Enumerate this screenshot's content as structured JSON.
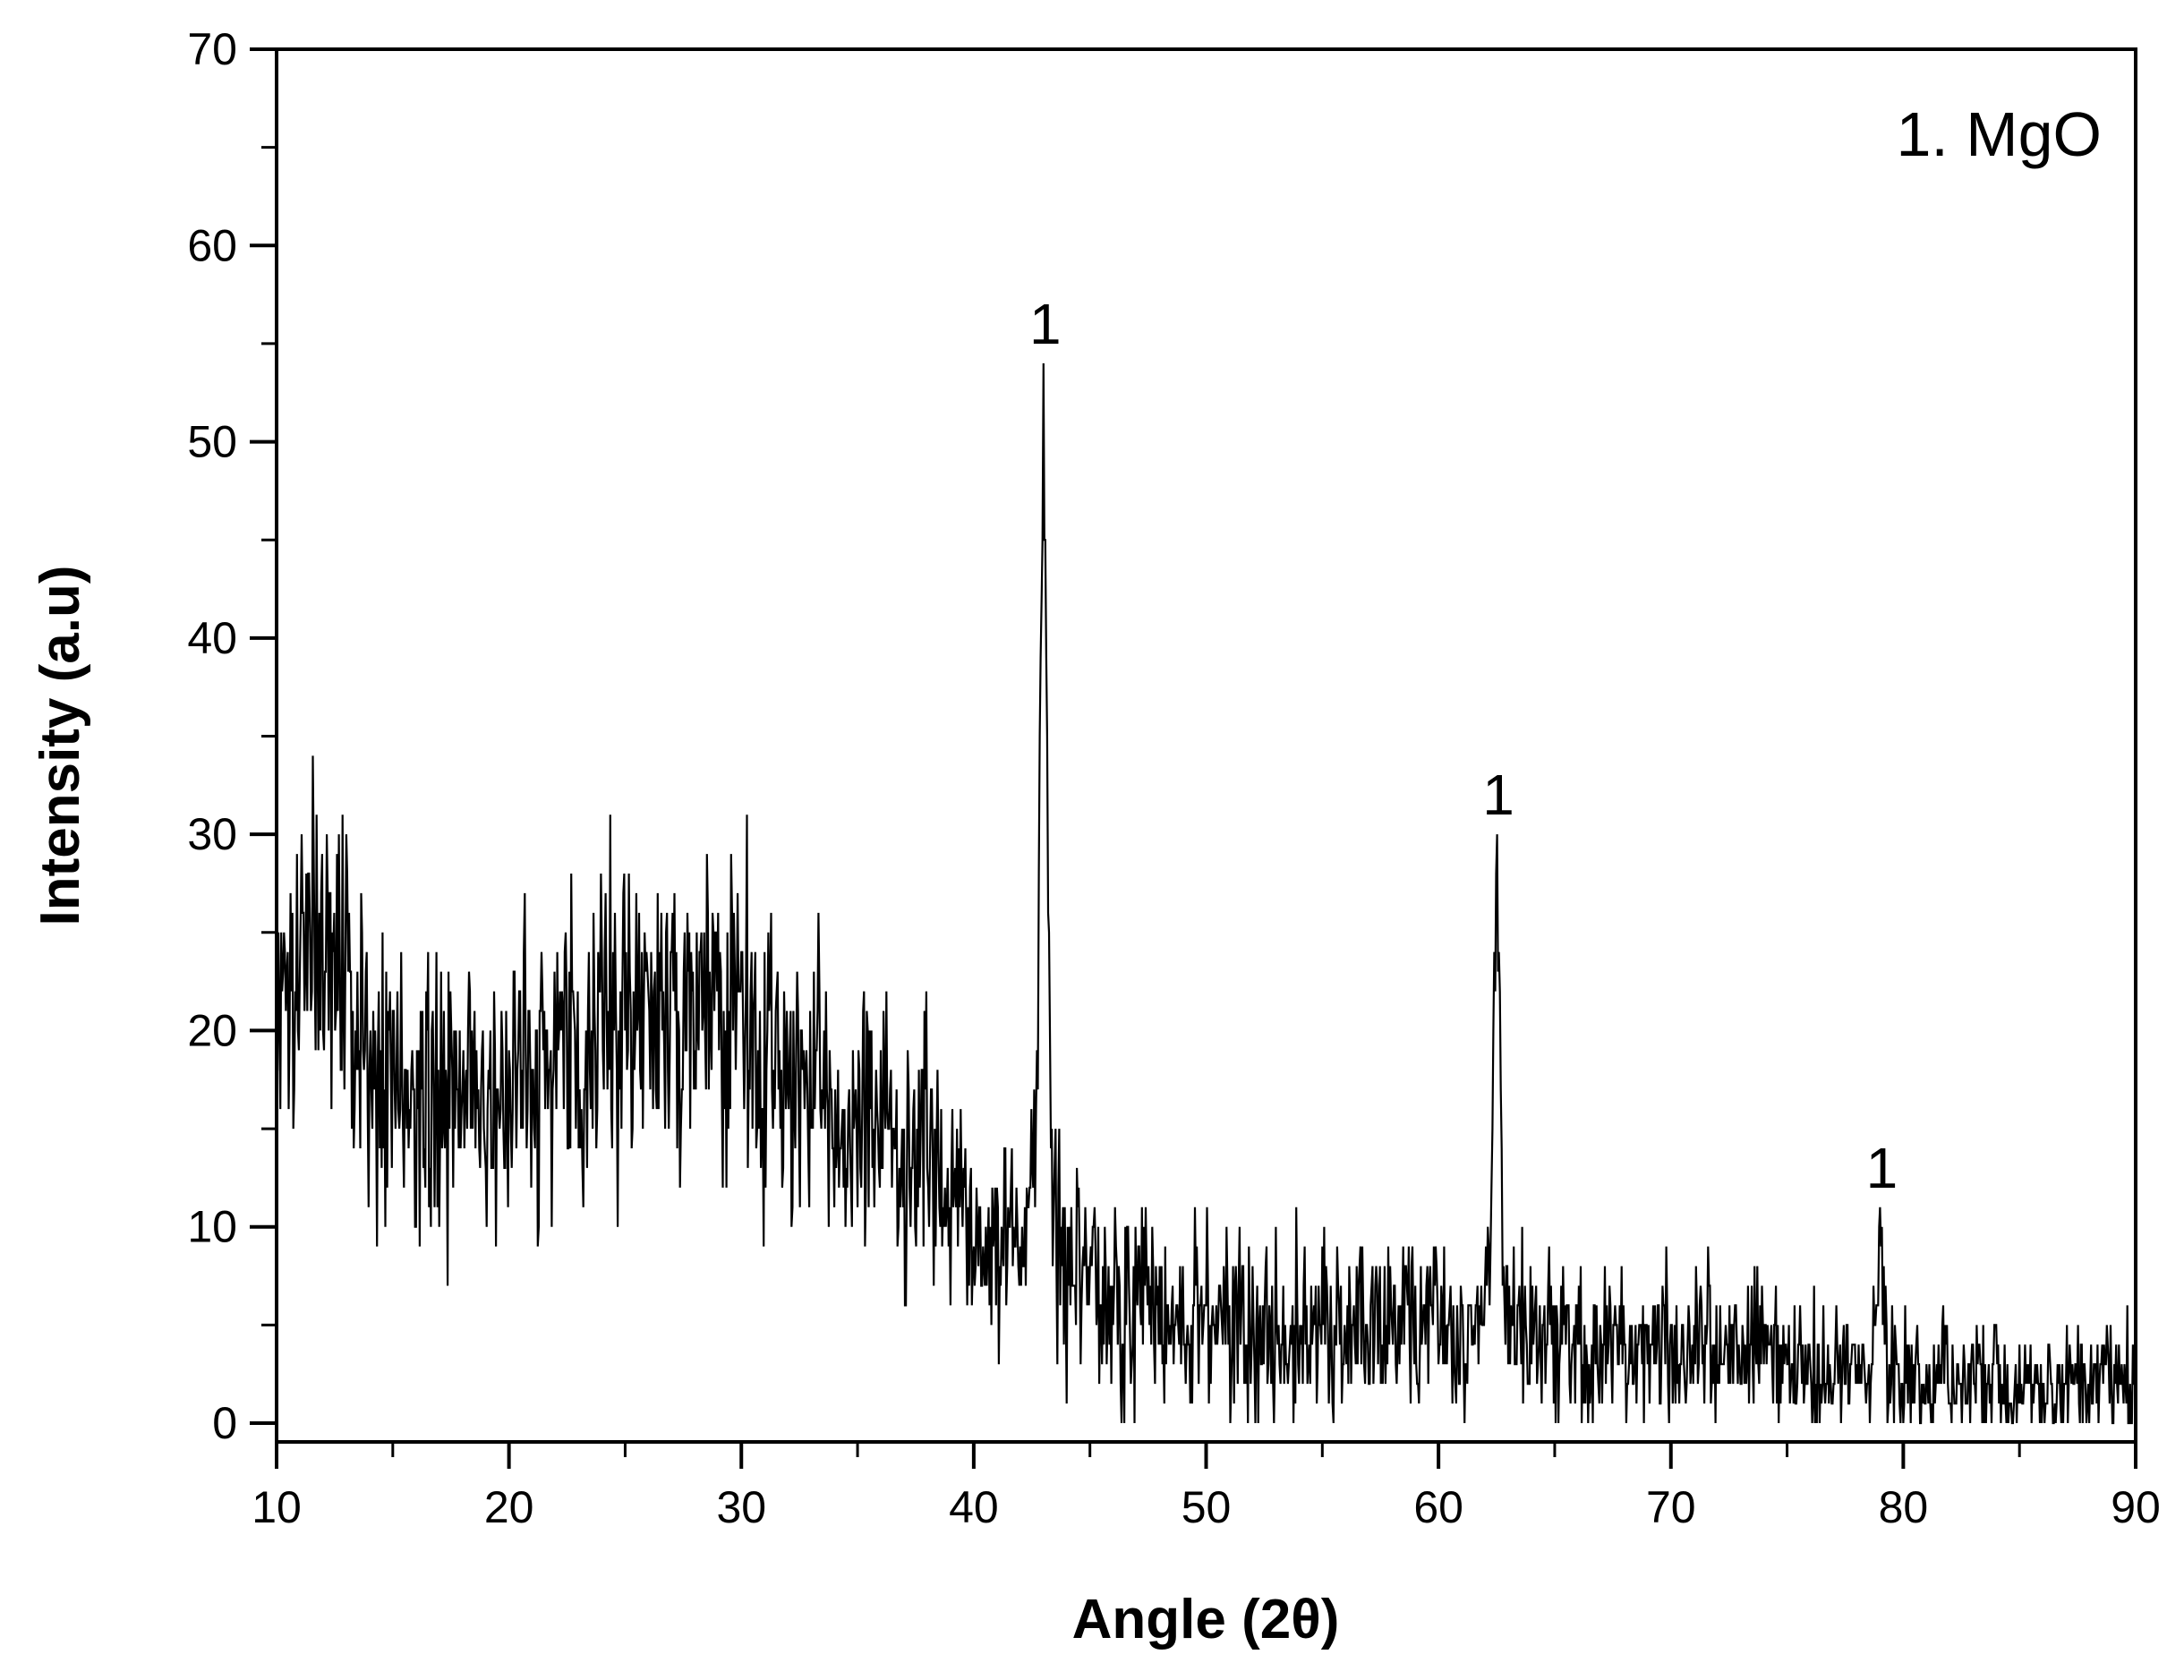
{
  "chart_data": {
    "type": "line",
    "title": "",
    "xlabel": "Angle (2θ)",
    "ylabel": "Intensity (a.u)",
    "xlim": [
      10,
      90
    ],
    "ylim": [
      0,
      70
    ],
    "x_ticks": [
      "10",
      "20",
      "30",
      "40",
      "50",
      "60",
      "70",
      "80",
      "90"
    ],
    "y_ticks": [
      "0",
      "10",
      "20",
      "30",
      "40",
      "50",
      "60",
      "70"
    ],
    "grid": false,
    "legend": {
      "text": "1. MgO",
      "placement": "top-right"
    },
    "line_color": "#000000",
    "noise_seed": 20240517,
    "baseline": [
      [
        10,
        24
      ],
      [
        12,
        24
      ],
      [
        14,
        20
      ],
      [
        16,
        15
      ],
      [
        18,
        17
      ],
      [
        20,
        18
      ],
      [
        24,
        20
      ],
      [
        26,
        21
      ],
      [
        28,
        21
      ],
      [
        30,
        20
      ],
      [
        32,
        18
      ],
      [
        34,
        16
      ],
      [
        36,
        15
      ],
      [
        38,
        12
      ],
      [
        40,
        10
      ],
      [
        42,
        9
      ],
      [
        44,
        7
      ],
      [
        46,
        6
      ],
      [
        50,
        5
      ],
      [
        55,
        5
      ],
      [
        60,
        5
      ],
      [
        65,
        4
      ],
      [
        70,
        4
      ],
      [
        75,
        3
      ],
      [
        80,
        2
      ],
      [
        85,
        2
      ],
      [
        90,
        2
      ]
    ],
    "noise_amplitude": [
      [
        10,
        4
      ],
      [
        20,
        4
      ],
      [
        30,
        4
      ],
      [
        40,
        3
      ],
      [
        45,
        2.5
      ],
      [
        90,
        1.5
      ]
    ],
    "peaks": [
      {
        "position": 43.0,
        "intensity": 54,
        "label": "1"
      },
      {
        "position": 62.5,
        "intensity": 30,
        "label": "1"
      },
      {
        "position": 79.0,
        "intensity": 11,
        "label": "1"
      }
    ]
  }
}
